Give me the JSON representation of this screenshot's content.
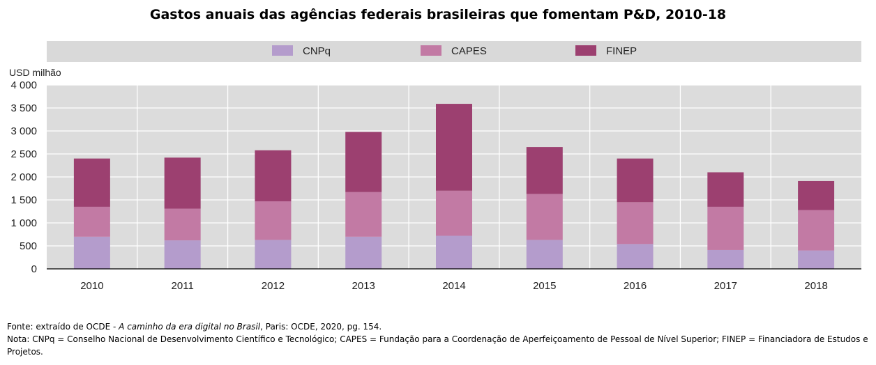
{
  "chart_data": {
    "type": "bar",
    "stacked": true,
    "title": "Gastos anuais das agências federais brasileiras que fomentam P&D, 2010-18",
    "ylabel": "USD milhão",
    "xlabel": "",
    "ylim": [
      0,
      4000
    ],
    "yticks": [
      0,
      500,
      1000,
      1500,
      2000,
      2500,
      3000,
      3500,
      4000
    ],
    "ytick_labels": [
      "0",
      "500",
      "1 000",
      "1 500",
      "2 000",
      "2 500",
      "3 000",
      "3 500",
      "4 000"
    ],
    "categories": [
      "2010",
      "2011",
      "2012",
      "2013",
      "2014",
      "2015",
      "2016",
      "2017",
      "2018"
    ],
    "series": [
      {
        "name": "CNPq",
        "color": "#b49ccc",
        "values": [
          700,
          620,
          630,
          700,
          720,
          630,
          540,
          410,
          400
        ]
      },
      {
        "name": "CAPES",
        "color": "#c27aa4",
        "values": [
          650,
          690,
          840,
          970,
          980,
          1000,
          910,
          940,
          880
        ]
      },
      {
        "name": "FINEP",
        "color": "#9c4070",
        "values": [
          1050,
          1110,
          1110,
          1310,
          1890,
          1020,
          950,
          750,
          630
        ]
      }
    ],
    "legend_position": "top",
    "grid": true
  },
  "notes": {
    "source_prefix": "Fonte: extraído de OCDE - ",
    "source_title": "A caminho da era digital no Brasil",
    "source_suffix": ", Paris: OCDE, 2020,  pg. 154.",
    "note": "Nota: CNPq = Conselho Nacional de Desenvolvimento Científico e Tecnológico; CAPES = Fundação para a  Coordenação de Aperfeiçoamento de Pessoal de Nível Superior; FINEP = Financiadora de Estudos e Projetos."
  }
}
